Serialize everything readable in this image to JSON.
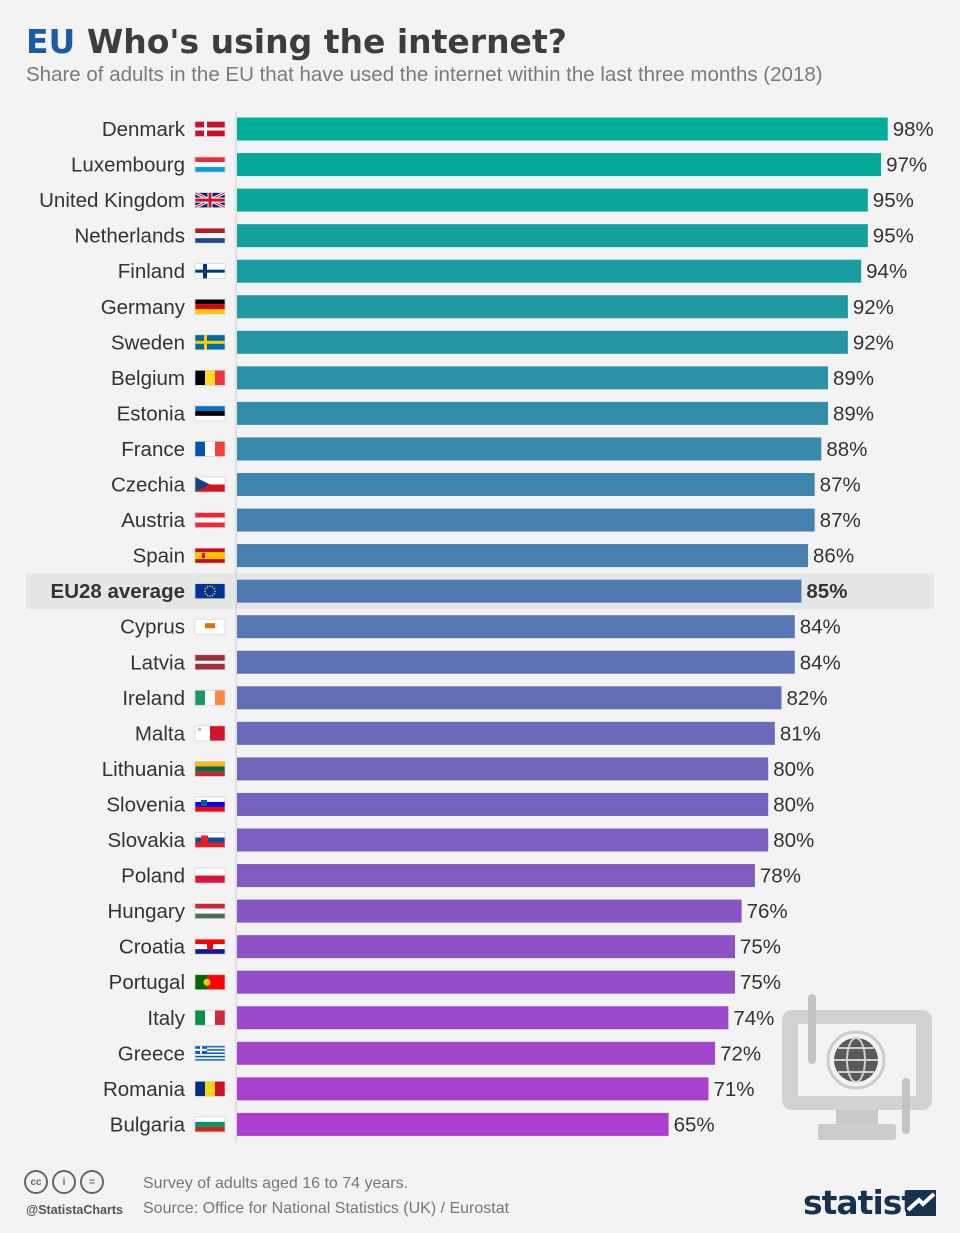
{
  "header": {
    "title_prefix": "EU",
    "title": "Who's using the internet?",
    "subtitle": "Share of adults in the EU that have used the internet within the last three months (2018)"
  },
  "chart_data": {
    "type": "bar",
    "orientation": "horizontal",
    "xlim": [
      0,
      100
    ],
    "unit": "%",
    "categories": [
      "Denmark",
      "Luxembourg",
      "United Kingdom",
      "Netherlands",
      "Finland",
      "Germany",
      "Sweden",
      "Belgium",
      "Estonia",
      "France",
      "Czechia",
      "Austria",
      "Spain",
      "EU28 average",
      "Cyprus",
      "Latvia",
      "Ireland",
      "Malta",
      "Lithuania",
      "Slovenia",
      "Slovakia",
      "Poland",
      "Hungary",
      "Croatia",
      "Portugal",
      "Italy",
      "Greece",
      "Romania",
      "Bulgaria"
    ],
    "values": [
      98,
      97,
      95,
      95,
      94,
      92,
      92,
      89,
      89,
      88,
      87,
      87,
      86,
      85,
      84,
      84,
      82,
      81,
      80,
      80,
      80,
      78,
      76,
      75,
      75,
      74,
      72,
      71,
      65
    ],
    "value_labels": [
      "98%",
      "97%",
      "95%",
      "95%",
      "94%",
      "92%",
      "92%",
      "89%",
      "89%",
      "88%",
      "87%",
      "87%",
      "86%",
      "85%",
      "84%",
      "84%",
      "82%",
      "81%",
      "80%",
      "80%",
      "80%",
      "78%",
      "76%",
      "75%",
      "75%",
      "74%",
      "72%",
      "71%",
      "65%"
    ],
    "highlight": "EU28 average",
    "colors": {
      "top": "#00ad98",
      "bottom": "#ad3ed0",
      "highlight_row_bg": "#e6e6e6",
      "label": "#333333"
    }
  },
  "footer": {
    "license_icons": [
      "cc-icon",
      "attribution-icon",
      "no-derivatives-icon"
    ],
    "license_glyphs": [
      "cc",
      "i",
      "="
    ],
    "handle": "@StatistaCharts",
    "survey_note": "Survey of adults aged 16 to 74 years.",
    "source": "Source: Office for National Statistics (UK) / Eurostat",
    "brand": "statista"
  }
}
